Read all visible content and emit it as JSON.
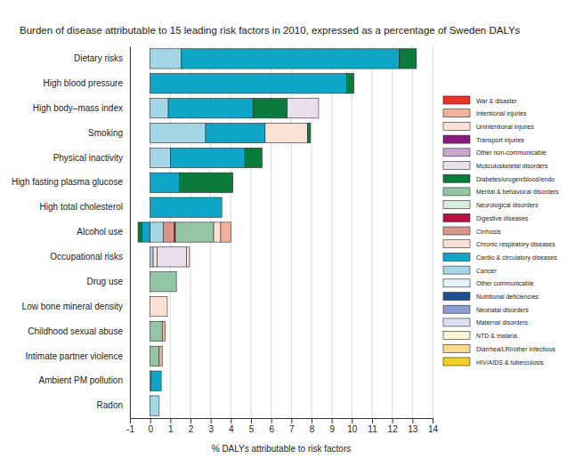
{
  "chart_data": {
    "type": "bar",
    "orientation": "horizontal",
    "stacked": true,
    "grid": true,
    "legend": "right",
    "title": "Burden of disease attributable to 15 leading risk factors in 2010, expressed as a percentage of Sweden DALYs",
    "x_label": "% DALYs attributable to risk factors",
    "categories": [
      "Dietary risks",
      "High blood pressure",
      "High body–mass index",
      "Smoking",
      "Physical inactivity",
      "High fasting plasma glucose",
      "High total cholesterol",
      "Alcohol use",
      "Occupational risks",
      "Drug use",
      "Low bone mineral density",
      "Childhood sexual abuse",
      "Intimate partner violence",
      "Ambient PM pollution",
      "Radon"
    ],
    "xlim": [
      -1,
      14
    ],
    "xticks": [
      -1,
      0,
      1,
      2,
      3,
      4,
      5,
      6,
      7,
      8,
      9,
      10,
      11,
      12,
      13,
      14
    ],
    "series": [
      {
        "name": "War & disaster",
        "color": "#e8312a",
        "values": [
          0,
          0,
          0,
          0,
          0,
          0,
          0,
          0,
          0,
          0,
          0,
          0,
          0,
          0,
          0
        ]
      },
      {
        "name": "Intentional injuries",
        "color": "#f4b29c",
        "values": [
          0,
          0,
          0,
          0,
          0,
          0,
          0,
          0.5,
          0,
          0,
          0,
          0.15,
          0.15,
          0,
          0
        ]
      },
      {
        "name": "Unintentional injuries",
        "color": "#fde2d4",
        "values": [
          0,
          0,
          0,
          0,
          0,
          0,
          0,
          0.35,
          0.15,
          0,
          0.85,
          0,
          0,
          0,
          0
        ]
      },
      {
        "name": "Transport injuries",
        "color": "#8a1a7e",
        "values": [
          0,
          0,
          0,
          0,
          0,
          0,
          0,
          0,
          0,
          0,
          0,
          0,
          0,
          0,
          0
        ]
      },
      {
        "name": "Other non-communicable",
        "color": "#c9a6cf",
        "values": [
          0,
          0,
          0,
          0,
          0,
          0,
          0,
          0,
          0,
          0,
          0,
          0,
          0,
          0,
          0
        ]
      },
      {
        "name": "Musculoskeletal disorders",
        "color": "#ebdeed",
        "values": [
          0,
          0,
          1.55,
          0,
          0,
          0,
          0,
          0,
          1.45,
          0,
          0,
          0,
          0,
          0,
          0
        ]
      },
      {
        "name": "Diabetes/urogen/blood/endo",
        "color": "#0b7a3b",
        "values": [
          0.85,
          0.35,
          1.7,
          0.15,
          0.85,
          2.65,
          0,
          -0.2,
          0,
          0,
          0,
          0,
          0,
          0,
          0
        ]
      },
      {
        "name": "Mental & behavioral disorders",
        "color": "#94c5a5",
        "values": [
          0,
          0,
          0,
          0,
          0,
          0,
          0,
          1.9,
          0,
          1.3,
          0,
          0.6,
          0.45,
          0,
          0
        ]
      },
      {
        "name": "Neurological disorders",
        "color": "#d8ecdf",
        "values": [
          0,
          0,
          0,
          0,
          0,
          0,
          0,
          0,
          0,
          0,
          0,
          0,
          0,
          0,
          0
        ]
      },
      {
        "name": "Digestive diseases",
        "color": "#b3123f",
        "values": [
          0,
          0,
          0,
          0,
          0,
          0,
          0,
          0.05,
          0,
          0,
          0,
          0,
          0,
          0,
          0
        ]
      },
      {
        "name": "Cirrhosis",
        "color": "#d9968a",
        "values": [
          0,
          0,
          0,
          0,
          0,
          0,
          0,
          0.55,
          0,
          0,
          0,
          0,
          0,
          0,
          0
        ]
      },
      {
        "name": "Chronic respiratory diseases",
        "color": "#fbe2d6",
        "values": [
          0,
          0,
          0,
          2.1,
          0,
          0,
          0,
          0,
          0.2,
          0,
          0,
          0,
          0,
          0,
          0
        ]
      },
      {
        "name": "Cardio & circulatory diseases",
        "color": "#0fa5c6",
        "values": [
          10.8,
          9.75,
          4.2,
          2.95,
          3.7,
          1.45,
          3.55,
          -0.4,
          0,
          0,
          0,
          0,
          0,
          0.5,
          0
        ]
      },
      {
        "name": "Cancer",
        "color": "#a5d6e6",
        "values": [
          1.55,
          0,
          0.9,
          2.75,
          1.0,
          0,
          0,
          0.65,
          0.15,
          0,
          0,
          0,
          0,
          0.05,
          0.45
        ]
      },
      {
        "name": "Other communicable",
        "color": "#e6f3f8",
        "values": [
          0,
          0,
          0,
          0,
          0,
          0,
          0,
          0,
          0,
          0,
          0,
          0,
          0,
          0,
          0
        ]
      },
      {
        "name": "Nutritional deficiencies",
        "color": "#1d4f91",
        "values": [
          0,
          0,
          0,
          0,
          0,
          0,
          0,
          0,
          0,
          0,
          0,
          0,
          0,
          0,
          0
        ]
      },
      {
        "name": "Neonatal disorders",
        "color": "#8b9fd2",
        "values": [
          0,
          0,
          0,
          0,
          0,
          0,
          0,
          0,
          0,
          0,
          0,
          0,
          0,
          0,
          0
        ]
      },
      {
        "name": "Maternal disorders",
        "color": "#dde0f1",
        "values": [
          0,
          0,
          0,
          0,
          0,
          0,
          0,
          0,
          0,
          0,
          0,
          0,
          0,
          0,
          0
        ]
      },
      {
        "name": "NTD & malaria",
        "color": "#fff4d6",
        "values": [
          0,
          0,
          0,
          0,
          0,
          0,
          0,
          0,
          0,
          0,
          0,
          0,
          0,
          0,
          0
        ]
      },
      {
        "name": "Diarrhea/LRI/other infectious",
        "color": "#f8da88",
        "values": [
          0,
          0,
          0,
          0,
          0,
          0,
          0,
          0,
          0,
          0,
          0,
          0,
          0,
          0,
          0
        ]
      },
      {
        "name": "HIV/AIDS & tuberculosis",
        "color": "#f4d11f",
        "values": [
          0,
          0,
          0,
          0,
          0,
          0,
          0,
          0,
          0,
          0,
          0,
          0,
          0,
          0,
          0
        ]
      }
    ]
  }
}
